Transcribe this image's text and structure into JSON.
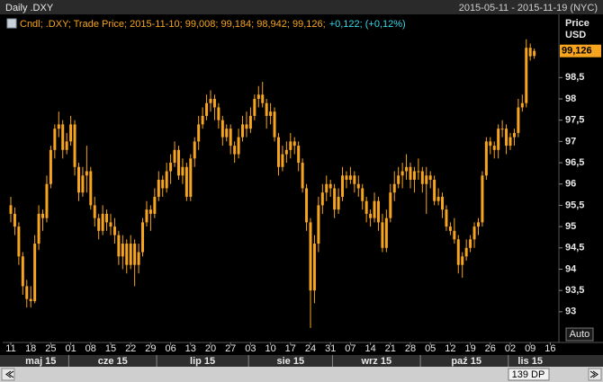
{
  "chart_data": {
    "type": "candlestick",
    "title": "Daily .DXY",
    "date_range": "2015-05-11 - 2015-11-19 (NYC)",
    "legend_main": "Cndl; .DXY; Trade Price; 2015-11-10; 99,008; 99,184; 98,942; 99,126;",
    "legend_change": "+0,122; (+0,12%)",
    "y_label_top": "Price",
    "y_label_unit": "USD",
    "last_price_label": "99,126",
    "auto_button": "Auto",
    "scroll_label": "139 DP",
    "color": "#f7a51e",
    "grid": false,
    "ylim": [
      92.3,
      99.9
    ],
    "yticks": [
      93,
      {
        "value": 93.5,
        "label": "93,5"
      },
      94,
      {
        "value": 94.5,
        "label": "94,5"
      },
      95,
      {
        "value": 95.5,
        "label": "95,5"
      },
      96,
      {
        "value": 96.5,
        "label": "96,5"
      },
      97,
      {
        "value": 97.5,
        "label": "97,5"
      },
      98,
      {
        "value": 98.5,
        "label": "98,5"
      }
    ],
    "xticks": [
      {
        "value": "2015-05-11",
        "label": "11"
      },
      {
        "value": "2015-05-18",
        "label": "18"
      },
      {
        "value": "2015-05-25",
        "label": "25"
      },
      {
        "value": "2015-06-01",
        "label": "01"
      },
      {
        "value": "2015-06-08",
        "label": "08"
      },
      {
        "value": "2015-06-15",
        "label": "15"
      },
      {
        "value": "2015-06-22",
        "label": "22"
      },
      {
        "value": "2015-06-29",
        "label": "29"
      },
      {
        "value": "2015-07-06",
        "label": "06"
      },
      {
        "value": "2015-07-13",
        "label": "13"
      },
      {
        "value": "2015-07-20",
        "label": "20"
      },
      {
        "value": "2015-07-27",
        "label": "27"
      },
      {
        "value": "2015-08-03",
        "label": "03"
      },
      {
        "value": "2015-08-10",
        "label": "10"
      },
      {
        "value": "2015-08-17",
        "label": "17"
      },
      {
        "value": "2015-08-24",
        "label": "24"
      },
      {
        "value": "2015-08-31",
        "label": "31"
      },
      {
        "value": "2015-09-07",
        "label": "07"
      },
      {
        "value": "2015-09-14",
        "label": "14"
      },
      {
        "value": "2015-09-21",
        "label": "21"
      },
      {
        "value": "2015-09-28",
        "label": "28"
      },
      {
        "value": "2015-10-05",
        "label": "05"
      },
      {
        "value": "2015-10-12",
        "label": "12"
      },
      {
        "value": "2015-10-19",
        "label": "19"
      },
      {
        "value": "2015-10-26",
        "label": "26"
      },
      {
        "value": "2015-11-02",
        "label": "02"
      },
      {
        "value": "2015-11-09",
        "label": "09"
      },
      {
        "value": "2015-11-16",
        "label": "16"
      }
    ],
    "months": [
      {
        "value": "2015-05",
        "label": "maj 15"
      },
      {
        "value": "2015-06",
        "label": "cze 15"
      },
      {
        "value": "2015-07",
        "label": "lip 15"
      },
      {
        "value": "2015-08",
        "label": "sie 15"
      },
      {
        "value": "2015-09",
        "label": "wrz 15"
      },
      {
        "value": "2015-10",
        "label": "paź 15"
      },
      {
        "value": "2015-11",
        "label": "lis 15"
      }
    ],
    "x": [
      "2015-05-11",
      "2015-05-12",
      "2015-05-13",
      "2015-05-14",
      "2015-05-15",
      "2015-05-18",
      "2015-05-19",
      "2015-05-20",
      "2015-05-21",
      "2015-05-22",
      "2015-05-25",
      "2015-05-26",
      "2015-05-27",
      "2015-05-28",
      "2015-05-29",
      "2015-06-01",
      "2015-06-02",
      "2015-06-03",
      "2015-06-04",
      "2015-06-05",
      "2015-06-08",
      "2015-06-09",
      "2015-06-10",
      "2015-06-11",
      "2015-06-12",
      "2015-06-15",
      "2015-06-16",
      "2015-06-17",
      "2015-06-18",
      "2015-06-19",
      "2015-06-22",
      "2015-06-23",
      "2015-06-24",
      "2015-06-25",
      "2015-06-26",
      "2015-06-29",
      "2015-06-30",
      "2015-07-01",
      "2015-07-02",
      "2015-07-03",
      "2015-07-06",
      "2015-07-07",
      "2015-07-08",
      "2015-07-09",
      "2015-07-10",
      "2015-07-13",
      "2015-07-14",
      "2015-07-15",
      "2015-07-16",
      "2015-07-17",
      "2015-07-20",
      "2015-07-21",
      "2015-07-22",
      "2015-07-23",
      "2015-07-24",
      "2015-07-27",
      "2015-07-28",
      "2015-07-29",
      "2015-07-30",
      "2015-07-31",
      "2015-08-03",
      "2015-08-04",
      "2015-08-05",
      "2015-08-06",
      "2015-08-07",
      "2015-08-10",
      "2015-08-11",
      "2015-08-12",
      "2015-08-13",
      "2015-08-14",
      "2015-08-17",
      "2015-08-18",
      "2015-08-19",
      "2015-08-20",
      "2015-08-21",
      "2015-08-24",
      "2015-08-25",
      "2015-08-26",
      "2015-08-27",
      "2015-08-28",
      "2015-08-31",
      "2015-09-01",
      "2015-09-02",
      "2015-09-03",
      "2015-09-04",
      "2015-09-07",
      "2015-09-08",
      "2015-09-09",
      "2015-09-10",
      "2015-09-11",
      "2015-09-14",
      "2015-09-15",
      "2015-09-16",
      "2015-09-17",
      "2015-09-18",
      "2015-09-21",
      "2015-09-22",
      "2015-09-23",
      "2015-09-24",
      "2015-09-25",
      "2015-09-28",
      "2015-09-29",
      "2015-09-30",
      "2015-10-01",
      "2015-10-02",
      "2015-10-05",
      "2015-10-06",
      "2015-10-07",
      "2015-10-08",
      "2015-10-09",
      "2015-10-12",
      "2015-10-13",
      "2015-10-14",
      "2015-10-15",
      "2015-10-16",
      "2015-10-19",
      "2015-10-20",
      "2015-10-21",
      "2015-10-22",
      "2015-10-23",
      "2015-10-26",
      "2015-10-27",
      "2015-10-28",
      "2015-10-29",
      "2015-10-30",
      "2015-11-02",
      "2015-11-03",
      "2015-11-04",
      "2015-11-05",
      "2015-11-06",
      "2015-11-09",
      "2015-11-10"
    ],
    "open": [
      95.5,
      95.3,
      95.0,
      94.3,
      93.6,
      93.3,
      93.25,
      94.6,
      95.3,
      95.2,
      96.0,
      96.8,
      97.3,
      97.4,
      96.8,
      97.0,
      97.4,
      96.4,
      95.8,
      96.2,
      96.3,
      95.5,
      95.2,
      94.9,
      95.3,
      95.1,
      95.0,
      94.8,
      94.3,
      94.6,
      94.1,
      94.6,
      94.1,
      94.4,
      95.1,
      95.4,
      95.3,
      95.7,
      96.1,
      95.9,
      96.3,
      96.5,
      96.8,
      96.2,
      96.4,
      95.7,
      96.6,
      97.0,
      97.4,
      97.6,
      97.9,
      98.0,
      97.8,
      97.5,
      97.1,
      97.3,
      96.9,
      96.7,
      97.1,
      97.4,
      97.3,
      97.6,
      98.0,
      98.1,
      97.9,
      97.6,
      97.7,
      97.1,
      96.4,
      96.7,
      96.8,
      97.0,
      96.9,
      96.5,
      95.9,
      95.1,
      93.5,
      94.6,
      95.5,
      95.8,
      96.0,
      95.9,
      95.4,
      95.7,
      96.2,
      96.1,
      96.2,
      96.0,
      95.9,
      95.6,
      95.3,
      95.2,
      95.6,
      95.1,
      94.5,
      95.2,
      95.8,
      96.0,
      96.2,
      96.3,
      96.4,
      96.1,
      96.3,
      96.3,
      96.0,
      96.2,
      96.1,
      95.6,
      95.7,
      95.4,
      95.0,
      94.9,
      94.7,
      94.1,
      94.3,
      94.5,
      94.7,
      95.0,
      95.1,
      96.2,
      97.0,
      96.9,
      96.8,
      97.3,
      97.3,
      96.9,
      97.1,
      97.2,
      97.8,
      97.9,
      99.2,
      99.008
    ],
    "high": [
      95.7,
      95.45,
      95.1,
      94.4,
      93.75,
      93.6,
      94.8,
      95.5,
      95.4,
      96.2,
      96.9,
      97.4,
      97.7,
      97.5,
      97.2,
      97.6,
      97.5,
      96.5,
      96.4,
      96.9,
      96.4,
      95.7,
      95.3,
      95.5,
      95.4,
      95.3,
      95.2,
      94.9,
      94.8,
      94.7,
      94.8,
      94.7,
      94.6,
      95.2,
      95.6,
      95.5,
      95.9,
      96.3,
      96.2,
      96.5,
      96.7,
      97.0,
      96.9,
      96.6,
      96.5,
      96.7,
      97.1,
      97.6,
      97.8,
      98.1,
      98.2,
      98.1,
      97.9,
      97.6,
      97.4,
      97.4,
      97.0,
      97.3,
      97.6,
      97.7,
      97.8,
      98.1,
      98.3,
      98.4,
      98.0,
      97.9,
      97.8,
      97.2,
      96.9,
      97.0,
      97.2,
      97.1,
      97.0,
      96.6,
      96.0,
      95.2,
      94.8,
      95.7,
      96.0,
      96.2,
      96.1,
      96.0,
      95.9,
      96.4,
      96.3,
      96.4,
      96.3,
      96.2,
      96.0,
      95.7,
      95.4,
      95.8,
      95.7,
      95.3,
      95.4,
      96.0,
      96.3,
      96.4,
      96.5,
      96.7,
      96.5,
      96.4,
      96.6,
      96.4,
      96.4,
      96.3,
      96.2,
      95.9,
      95.8,
      95.5,
      95.1,
      95.2,
      94.8,
      94.4,
      94.7,
      94.8,
      95.1,
      95.2,
      96.3,
      97.1,
      97.1,
      97.0,
      97.4,
      97.5,
      97.4,
      97.2,
      97.3,
      98.0,
      98.1,
      99.4,
      99.3,
      99.184
    ],
    "low": [
      95.1,
      94.8,
      94.1,
      93.4,
      93.1,
      93.1,
      93.2,
      94.45,
      94.9,
      95.1,
      95.9,
      96.6,
      97.1,
      96.6,
      96.7,
      96.9,
      96.2,
      95.6,
      95.7,
      95.8,
      95.4,
      95.0,
      94.7,
      94.8,
      94.9,
      94.8,
      94.6,
      94.1,
      94.0,
      93.9,
      94.0,
      93.6,
      93.9,
      94.3,
      95.0,
      94.9,
      95.2,
      95.6,
      95.7,
      95.8,
      96.0,
      96.4,
      96.1,
      96.0,
      95.6,
      95.6,
      96.4,
      96.8,
      97.3,
      97.5,
      97.7,
      97.5,
      97.3,
      96.9,
      97.0,
      96.7,
      96.5,
      96.6,
      97.0,
      97.1,
      97.2,
      97.5,
      97.8,
      97.8,
      97.3,
      97.4,
      97.0,
      96.2,
      96.3,
      96.5,
      96.6,
      96.7,
      96.3,
      95.8,
      94.9,
      92.62,
      93.2,
      94.4,
      95.3,
      95.6,
      95.7,
      95.2,
      95.3,
      95.6,
      95.9,
      96.0,
      95.8,
      95.7,
      95.4,
      95.1,
      95.0,
      95.1,
      94.9,
      94.4,
      94.4,
      95.1,
      95.6,
      95.9,
      95.9,
      96.1,
      95.9,
      95.8,
      96.1,
      95.8,
      95.3,
      95.9,
      95.5,
      95.5,
      95.2,
      94.9,
      94.8,
      94.6,
      93.9,
      93.8,
      94.2,
      94.4,
      94.5,
      94.8,
      95.0,
      96.1,
      96.7,
      96.6,
      96.6,
      97.1,
      96.7,
      96.8,
      96.9,
      97.1,
      97.7,
      97.8,
      98.9,
      98.942
    ],
    "close": [
      95.3,
      95.0,
      94.3,
      93.6,
      93.3,
      93.25,
      94.6,
      95.3,
      95.2,
      96.0,
      96.8,
      97.3,
      97.4,
      96.8,
      97.0,
      97.4,
      96.4,
      95.8,
      96.2,
      96.3,
      95.5,
      95.2,
      94.9,
      95.3,
      95.1,
      95.0,
      94.8,
      94.3,
      94.6,
      94.1,
      94.6,
      94.1,
      94.4,
      95.1,
      95.4,
      95.3,
      95.7,
      96.1,
      95.9,
      96.3,
      96.5,
      96.8,
      96.2,
      96.4,
      95.7,
      96.6,
      97.0,
      97.4,
      97.6,
      97.9,
      98.0,
      97.8,
      97.5,
      97.1,
      97.3,
      96.9,
      96.7,
      97.1,
      97.4,
      97.3,
      97.6,
      98.0,
      98.1,
      97.9,
      97.6,
      97.7,
      97.1,
      96.4,
      96.7,
      96.8,
      97.0,
      96.9,
      96.5,
      95.9,
      95.1,
      93.5,
      94.6,
      95.5,
      95.8,
      96.0,
      95.9,
      95.4,
      95.7,
      96.2,
      96.1,
      96.2,
      96.0,
      95.9,
      95.6,
      95.3,
      95.2,
      95.6,
      95.1,
      94.5,
      95.2,
      95.8,
      96.0,
      96.2,
      96.3,
      96.4,
      96.1,
      96.3,
      96.3,
      96.0,
      96.2,
      96.1,
      95.6,
      95.7,
      95.4,
      95.0,
      94.9,
      94.7,
      94.1,
      94.3,
      94.5,
      94.7,
      95.0,
      95.1,
      96.2,
      97.0,
      96.9,
      96.8,
      97.3,
      97.3,
      96.9,
      97.1,
      97.2,
      97.8,
      97.9,
      99.2,
      99.0,
      99.126
    ]
  }
}
